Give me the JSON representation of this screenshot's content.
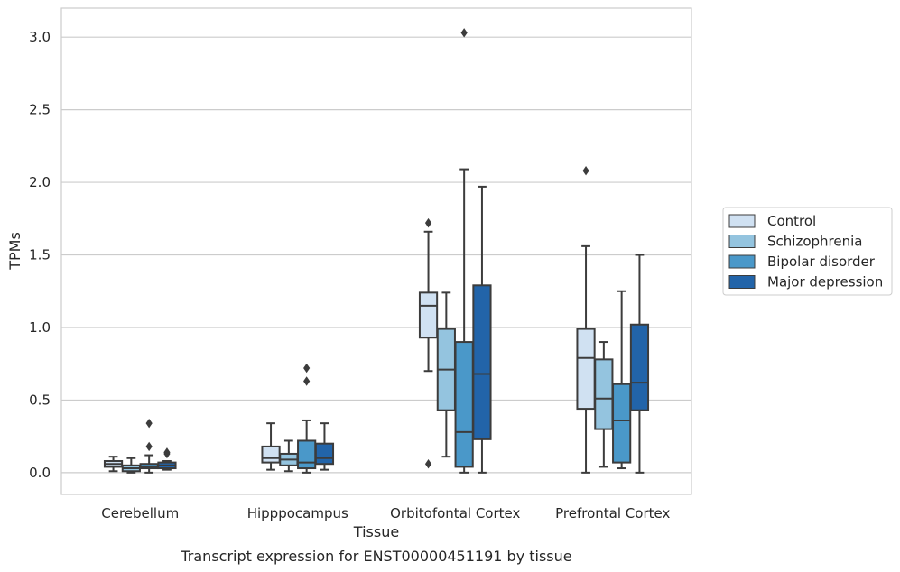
{
  "chart_data": {
    "type": "box",
    "xlabel": "Tissue",
    "ylabel": "TPMs",
    "caption": "Transcript expression for ENST00000451191 by tissue",
    "categories": [
      "Cerebellum",
      "Hipppocampus",
      "Orbitofontal Cortex",
      "Prefrontal Cortex"
    ],
    "ylim": [
      -0.15,
      3.2
    ],
    "yticks": [
      "0.0",
      "0.5",
      "1.0",
      "1.5",
      "2.0",
      "2.5",
      "3.0"
    ],
    "grid": true,
    "legend_position": "right",
    "series": [
      {
        "name": "Control",
        "color": "#d0e1f2",
        "boxes": [
          {
            "whislo": 0.01,
            "q1": 0.04,
            "med": 0.06,
            "q3": 0.08,
            "whishi": 0.11,
            "fliers": []
          },
          {
            "whislo": 0.02,
            "q1": 0.07,
            "med": 0.1,
            "q3": 0.18,
            "whishi": 0.34,
            "fliers": []
          },
          {
            "whislo": 0.7,
            "q1": 0.93,
            "med": 1.15,
            "q3": 1.24,
            "whishi": 1.66,
            "fliers": [
              1.72,
              0.06
            ]
          },
          {
            "whislo": 0.0,
            "q1": 0.44,
            "med": 0.79,
            "q3": 0.99,
            "whishi": 1.56,
            "fliers": [
              2.08
            ]
          }
        ]
      },
      {
        "name": "Schizophrenia",
        "color": "#94c4df",
        "boxes": [
          {
            "whislo": 0.0,
            "q1": 0.01,
            "med": 0.03,
            "q3": 0.05,
            "whishi": 0.1,
            "fliers": []
          },
          {
            "whislo": 0.01,
            "q1": 0.05,
            "med": 0.09,
            "q3": 0.13,
            "whishi": 0.22,
            "fliers": []
          },
          {
            "whislo": 0.11,
            "q1": 0.43,
            "med": 0.71,
            "q3": 0.99,
            "whishi": 1.24,
            "fliers": []
          },
          {
            "whislo": 0.04,
            "q1": 0.3,
            "med": 0.51,
            "q3": 0.78,
            "whishi": 0.9,
            "fliers": []
          }
        ]
      },
      {
        "name": "Bipolar disorder",
        "color": "#4a98c9",
        "boxes": [
          {
            "whislo": 0.0,
            "q1": 0.03,
            "med": 0.04,
            "q3": 0.06,
            "whishi": 0.12,
            "fliers": [
              0.34,
              0.18
            ]
          },
          {
            "whislo": 0.0,
            "q1": 0.03,
            "med": 0.07,
            "q3": 0.22,
            "whishi": 0.36,
            "fliers": [
              0.72,
              0.63
            ]
          },
          {
            "whislo": 0.0,
            "q1": 0.04,
            "med": 0.28,
            "q3": 0.9,
            "whishi": 2.09,
            "fliers": [
              3.03
            ]
          },
          {
            "whislo": 0.03,
            "q1": 0.07,
            "med": 0.36,
            "q3": 0.61,
            "whishi": 1.25,
            "fliers": []
          }
        ]
      },
      {
        "name": "Major depression",
        "color": "#2264a9",
        "boxes": [
          {
            "whislo": 0.02,
            "q1": 0.03,
            "med": 0.05,
            "q3": 0.07,
            "whishi": 0.08,
            "fliers": [
              0.14,
              0.13
            ]
          },
          {
            "whislo": 0.02,
            "q1": 0.06,
            "med": 0.1,
            "q3": 0.2,
            "whishi": 0.34,
            "fliers": []
          },
          {
            "whislo": 0.0,
            "q1": 0.23,
            "med": 0.68,
            "q3": 1.29,
            "whishi": 1.97,
            "fliers": []
          },
          {
            "whislo": 0.0,
            "q1": 0.43,
            "med": 0.62,
            "q3": 1.02,
            "whishi": 1.5,
            "fliers": []
          }
        ]
      }
    ]
  }
}
